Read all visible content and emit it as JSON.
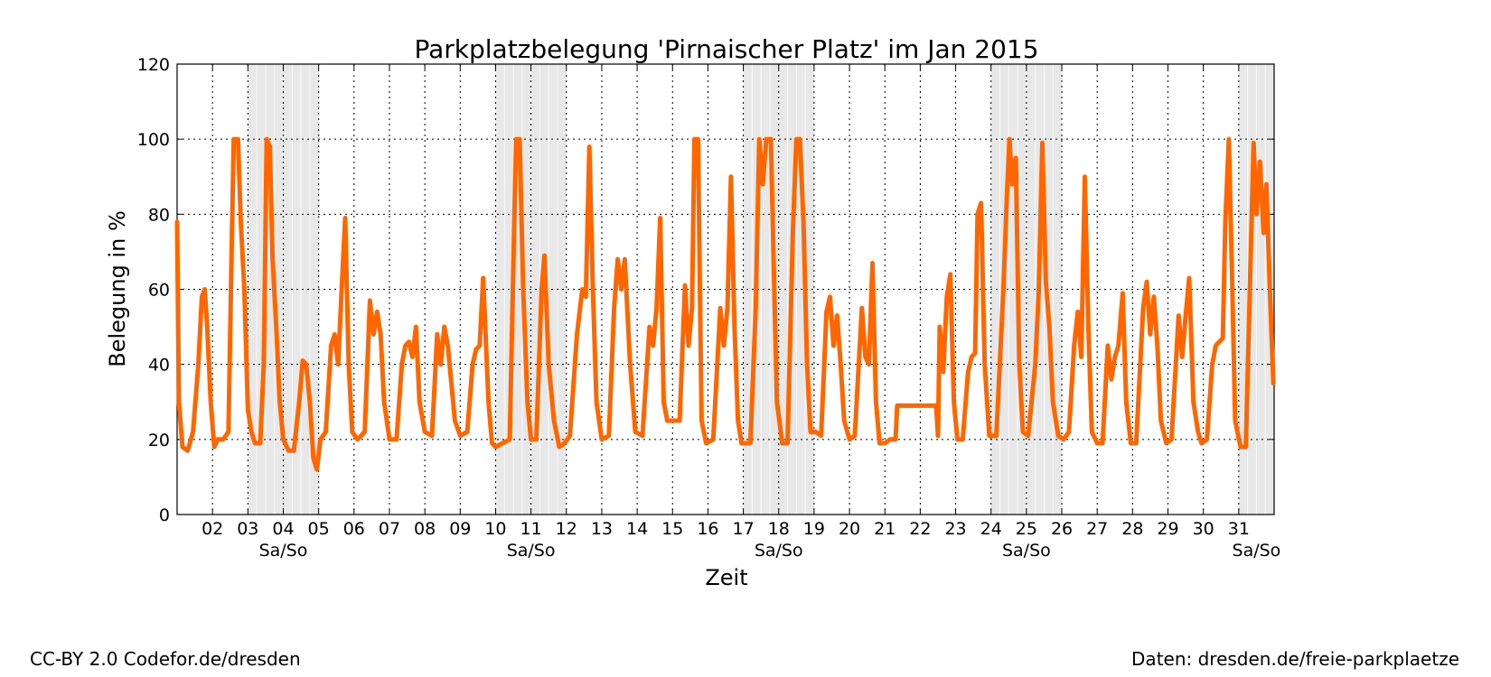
{
  "chart_data": {
    "type": "line",
    "title": "Parkplatzbelegung 'Pirnaischer Platz' im Jan 2015",
    "xlabel": "Zeit",
    "ylabel": "Belegung in %",
    "xlim": [
      1,
      32
    ],
    "ylim": [
      0,
      120
    ],
    "yticks": [
      0,
      20,
      40,
      60,
      80,
      100,
      120
    ],
    "xticks": [
      "02",
      "03",
      "04",
      "05",
      "06",
      "07",
      "08",
      "09",
      "10",
      "11",
      "12",
      "13",
      "14",
      "15",
      "16",
      "17",
      "18",
      "19",
      "20",
      "21",
      "22",
      "23",
      "24",
      "25",
      "26",
      "27",
      "28",
      "29",
      "30",
      "31"
    ],
    "grid": true,
    "weekend_label": "Sa/So",
    "weekend_ranges": [
      [
        3,
        5
      ],
      [
        10,
        12
      ],
      [
        17,
        19
      ],
      [
        24,
        26
      ],
      [
        31,
        32
      ]
    ],
    "colors": {
      "line": "#ff6600",
      "weekend_shade": "#e8e8e8",
      "grid": "#000000"
    },
    "series": [
      {
        "day_values": [
          [
            1,
            78
          ],
          [
            1.05,
            30
          ],
          [
            1.15,
            18
          ],
          [
            1.3,
            17
          ],
          [
            1.45,
            22
          ],
          [
            1.6,
            40
          ],
          [
            1.7,
            58
          ],
          [
            1.78,
            60
          ],
          [
            1.85,
            50
          ],
          [
            1.95,
            30
          ],
          [
            2.05,
            18
          ],
          [
            2.15,
            20
          ],
          [
            2.3,
            20
          ],
          [
            2.45,
            22
          ],
          [
            2.55,
            75
          ],
          [
            2.6,
            100
          ],
          [
            2.72,
            100
          ],
          [
            2.8,
            78
          ],
          [
            2.9,
            60
          ],
          [
            3.0,
            28
          ],
          [
            3.1,
            22
          ],
          [
            3.2,
            19
          ],
          [
            3.35,
            19
          ],
          [
            3.45,
            40
          ],
          [
            3.53,
            100
          ],
          [
            3.62,
            98
          ],
          [
            3.7,
            68
          ],
          [
            3.8,
            50
          ],
          [
            3.9,
            30
          ],
          [
            4.0,
            20
          ],
          [
            4.15,
            17
          ],
          [
            4.3,
            17
          ],
          [
            4.45,
            30
          ],
          [
            4.55,
            41
          ],
          [
            4.65,
            40
          ],
          [
            4.75,
            30
          ],
          [
            4.85,
            15
          ],
          [
            4.95,
            12
          ],
          [
            5.05,
            20
          ],
          [
            5.2,
            22
          ],
          [
            5.35,
            45
          ],
          [
            5.45,
            48
          ],
          [
            5.55,
            40
          ],
          [
            5.65,
            60
          ],
          [
            5.75,
            79
          ],
          [
            5.85,
            40
          ],
          [
            5.95,
            22
          ],
          [
            6.1,
            20
          ],
          [
            6.3,
            22
          ],
          [
            6.45,
            57
          ],
          [
            6.55,
            48
          ],
          [
            6.65,
            54
          ],
          [
            6.75,
            48
          ],
          [
            6.85,
            30
          ],
          [
            7.0,
            20
          ],
          [
            7.2,
            20
          ],
          [
            7.35,
            40
          ],
          [
            7.45,
            45
          ],
          [
            7.55,
            46
          ],
          [
            7.65,
            42
          ],
          [
            7.75,
            50
          ],
          [
            7.85,
            30
          ],
          [
            8.0,
            22
          ],
          [
            8.2,
            21
          ],
          [
            8.35,
            48
          ],
          [
            8.45,
            40
          ],
          [
            8.55,
            50
          ],
          [
            8.65,
            45
          ],
          [
            8.75,
            35
          ],
          [
            8.85,
            25
          ],
          [
            9.0,
            21
          ],
          [
            9.2,
            22
          ],
          [
            9.35,
            40
          ],
          [
            9.45,
            44
          ],
          [
            9.55,
            45
          ],
          [
            9.65,
            63
          ],
          [
            9.8,
            30
          ],
          [
            9.9,
            19
          ],
          [
            10.0,
            18
          ],
          [
            10.2,
            19
          ],
          [
            10.4,
            20
          ],
          [
            10.5,
            65
          ],
          [
            10.58,
            100
          ],
          [
            10.68,
            100
          ],
          [
            10.78,
            60
          ],
          [
            10.9,
            30
          ],
          [
            11.0,
            20
          ],
          [
            11.15,
            20
          ],
          [
            11.3,
            60
          ],
          [
            11.38,
            69
          ],
          [
            11.5,
            40
          ],
          [
            11.65,
            25
          ],
          [
            11.8,
            18
          ],
          [
            11.95,
            19
          ],
          [
            12.1,
            21
          ],
          [
            12.3,
            48
          ],
          [
            12.45,
            60
          ],
          [
            12.55,
            58
          ],
          [
            12.65,
            98
          ],
          [
            12.75,
            60
          ],
          [
            12.85,
            30
          ],
          [
            13.0,
            20
          ],
          [
            13.2,
            21
          ],
          [
            13.35,
            55
          ],
          [
            13.45,
            68
          ],
          [
            13.55,
            60
          ],
          [
            13.65,
            68
          ],
          [
            13.8,
            40
          ],
          [
            13.95,
            22
          ],
          [
            14.15,
            21
          ],
          [
            14.35,
            50
          ],
          [
            14.45,
            45
          ],
          [
            14.55,
            55
          ],
          [
            14.65,
            79
          ],
          [
            14.75,
            30
          ],
          [
            14.85,
            25
          ],
          [
            15.0,
            25
          ],
          [
            15.2,
            25
          ],
          [
            15.35,
            61
          ],
          [
            15.45,
            45
          ],
          [
            15.55,
            55
          ],
          [
            15.62,
            100
          ],
          [
            15.72,
            100
          ],
          [
            15.82,
            25
          ],
          [
            15.95,
            19
          ],
          [
            16.15,
            20
          ],
          [
            16.35,
            55
          ],
          [
            16.45,
            45
          ],
          [
            16.55,
            55
          ],
          [
            16.65,
            90
          ],
          [
            16.75,
            50
          ],
          [
            16.85,
            25
          ],
          [
            16.95,
            19
          ],
          [
            17.2,
            19
          ],
          [
            17.35,
            55
          ],
          [
            17.45,
            100
          ],
          [
            17.55,
            88
          ],
          [
            17.65,
            100
          ],
          [
            17.78,
            100
          ],
          [
            17.85,
            70
          ],
          [
            17.95,
            30
          ],
          [
            18.1,
            19
          ],
          [
            18.25,
            19
          ],
          [
            18.4,
            75
          ],
          [
            18.5,
            100
          ],
          [
            18.6,
            100
          ],
          [
            18.7,
            78
          ],
          [
            18.8,
            40
          ],
          [
            18.9,
            22
          ],
          [
            19.05,
            22
          ],
          [
            19.2,
            21
          ],
          [
            19.35,
            54
          ],
          [
            19.45,
            58
          ],
          [
            19.55,
            45
          ],
          [
            19.65,
            53
          ],
          [
            19.75,
            40
          ],
          [
            19.85,
            25
          ],
          [
            20.0,
            20
          ],
          [
            20.15,
            21
          ],
          [
            20.35,
            55
          ],
          [
            20.45,
            42
          ],
          [
            20.55,
            40
          ],
          [
            20.65,
            67
          ],
          [
            20.75,
            30
          ],
          [
            20.85,
            19
          ],
          [
            21.0,
            19
          ],
          [
            21.15,
            20
          ],
          [
            21.3,
            20
          ],
          [
            21.35,
            29
          ],
          [
            21.55,
            29
          ],
          [
            21.8,
            29
          ],
          [
            22.1,
            29
          ],
          [
            22.35,
            29
          ],
          [
            22.45,
            29
          ],
          [
            22.5,
            21
          ],
          [
            22.55,
            50
          ],
          [
            22.65,
            38
          ],
          [
            22.75,
            58
          ],
          [
            22.85,
            64
          ],
          [
            22.95,
            30
          ],
          [
            23.05,
            20
          ],
          [
            23.2,
            20
          ],
          [
            23.35,
            38
          ],
          [
            23.45,
            42
          ],
          [
            23.55,
            43
          ],
          [
            23.62,
            80
          ],
          [
            23.72,
            83
          ],
          [
            23.82,
            40
          ],
          [
            23.95,
            21
          ],
          [
            24.15,
            21
          ],
          [
            24.35,
            60
          ],
          [
            24.45,
            85
          ],
          [
            24.52,
            100
          ],
          [
            24.6,
            88
          ],
          [
            24.7,
            95
          ],
          [
            24.8,
            40
          ],
          [
            24.9,
            22
          ],
          [
            25.05,
            21
          ],
          [
            25.25,
            40
          ],
          [
            25.35,
            60
          ],
          [
            25.45,
            99
          ],
          [
            25.55,
            62
          ],
          [
            25.65,
            50
          ],
          [
            25.75,
            30
          ],
          [
            25.9,
            21
          ],
          [
            26.05,
            20
          ],
          [
            26.2,
            22
          ],
          [
            26.35,
            45
          ],
          [
            26.45,
            54
          ],
          [
            26.55,
            42
          ],
          [
            26.65,
            90
          ],
          [
            26.75,
            50
          ],
          [
            26.85,
            22
          ],
          [
            27.0,
            19
          ],
          [
            27.15,
            19
          ],
          [
            27.3,
            45
          ],
          [
            27.4,
            36
          ],
          [
            27.5,
            42
          ],
          [
            27.6,
            45
          ],
          [
            27.72,
            59
          ],
          [
            27.82,
            30
          ],
          [
            27.95,
            19
          ],
          [
            28.1,
            19
          ],
          [
            28.3,
            55
          ],
          [
            28.4,
            62
          ],
          [
            28.5,
            48
          ],
          [
            28.6,
            58
          ],
          [
            28.7,
            45
          ],
          [
            28.8,
            25
          ],
          [
            28.95,
            19
          ],
          [
            29.1,
            20
          ],
          [
            29.3,
            53
          ],
          [
            29.4,
            42
          ],
          [
            29.5,
            53
          ],
          [
            29.6,
            63
          ],
          [
            29.72,
            30
          ],
          [
            29.85,
            22
          ],
          [
            29.95,
            19
          ],
          [
            30.1,
            20
          ],
          [
            30.25,
            40
          ],
          [
            30.35,
            45
          ],
          [
            30.45,
            46
          ],
          [
            30.55,
            47
          ],
          [
            30.62,
            78
          ],
          [
            30.72,
            100
          ],
          [
            30.82,
            60
          ],
          [
            30.9,
            25
          ],
          [
            31.05,
            18
          ],
          [
            31.2,
            18
          ],
          [
            31.3,
            55
          ],
          [
            31.42,
            99
          ],
          [
            31.5,
            80
          ],
          [
            31.6,
            94
          ],
          [
            31.7,
            75
          ],
          [
            31.78,
            88
          ],
          [
            31.88,
            60
          ],
          [
            31.98,
            35
          ]
        ]
      }
    ]
  },
  "footer": {
    "left": "CC-BY 2.0 Codefor.de/dresden",
    "right": "Daten: dresden.de/freie-parkplaetze"
  }
}
